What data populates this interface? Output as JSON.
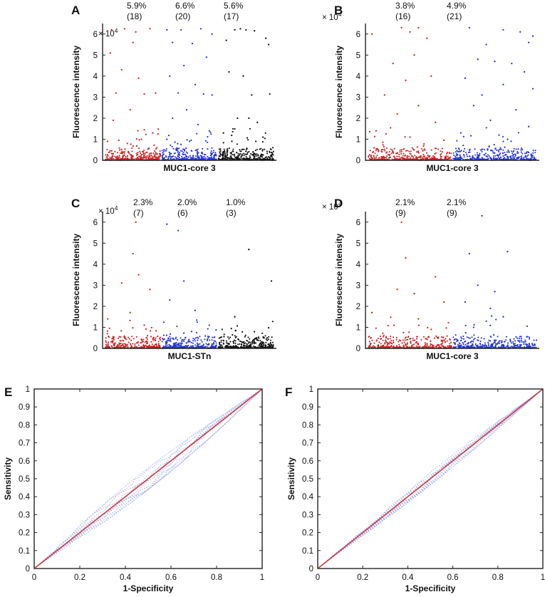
{
  "figure": {
    "colors": {
      "group1": "#cc2222",
      "group2": "#2233dd",
      "group3": "#111111",
      "diagonal": "#d23b3b",
      "roc_curves": "#8f9df0"
    }
  },
  "chart_data": [
    {
      "panel": "A",
      "type": "scatter",
      "xlabel": "MUC1-core 3",
      "ylabel": "Fluorescence intensity",
      "y_multiplier": "× 10",
      "y_multiplier_exp": "4",
      "ylim": [
        0,
        6.5
      ],
      "yticks": [
        "0",
        "1",
        "2",
        "3",
        "4",
        "5",
        "6"
      ],
      "groups": [
        {
          "percent": "5.9%",
          "count": "(18)",
          "color": "#cc2222",
          "n_points": 300,
          "high_points": [
            [
              0.12,
              6.2
            ],
            [
              0.35,
              6.25
            ],
            [
              0.55,
              6.1
            ],
            [
              0.8,
              6.25
            ],
            [
              0.1,
              5.1
            ],
            [
              0.5,
              5.6
            ],
            [
              0.3,
              4.3
            ],
            [
              0.6,
              3.9
            ],
            [
              0.2,
              3.2
            ],
            [
              0.7,
              3.15
            ],
            [
              0.9,
              3.2
            ],
            [
              0.45,
              2.4
            ],
            [
              0.15,
              1.9
            ],
            [
              0.85,
              1.3
            ],
            [
              0.65,
              1.0
            ],
            [
              0.25,
              0.95
            ],
            [
              0.05,
              0.9
            ],
            [
              0.4,
              0.8
            ]
          ]
        },
        {
          "percent": "6.6%",
          "count": "(20)",
          "color": "#2233dd",
          "n_points": 300,
          "high_points": [
            [
              0.1,
              6.2
            ],
            [
              0.35,
              6.2
            ],
            [
              0.7,
              6.25
            ],
            [
              0.9,
              6.0
            ],
            [
              0.2,
              5.6
            ],
            [
              0.55,
              5.55
            ],
            [
              0.8,
              4.9
            ],
            [
              0.4,
              4.5
            ],
            [
              0.15,
              4.0
            ],
            [
              0.6,
              3.6
            ],
            [
              0.3,
              3.2
            ],
            [
              0.75,
              3.15
            ],
            [
              0.9,
              3.1
            ],
            [
              0.45,
              2.4
            ],
            [
              0.2,
              2.0
            ],
            [
              0.65,
              1.7
            ],
            [
              0.85,
              1.4
            ],
            [
              0.1,
              1.0
            ],
            [
              0.5,
              0.9
            ],
            [
              0.35,
              0.75
            ]
          ]
        },
        {
          "percent": "5.6%",
          "count": "(17)",
          "color": "#111111",
          "n_points": 300,
          "high_points": [
            [
              0.3,
              6.2
            ],
            [
              0.4,
              6.25
            ],
            [
              0.5,
              6.2
            ],
            [
              0.65,
              6.15
            ],
            [
              0.85,
              5.8
            ],
            [
              0.9,
              5.5
            ],
            [
              0.15,
              5.7
            ],
            [
              0.2,
              4.2
            ],
            [
              0.45,
              4.0
            ],
            [
              0.6,
              3.1
            ],
            [
              0.92,
              3.15
            ],
            [
              0.35,
              2.0
            ],
            [
              0.55,
              2.0
            ],
            [
              0.7,
              1.8
            ],
            [
              0.1,
              1.3
            ],
            [
              0.8,
              1.1
            ],
            [
              0.25,
              0.9
            ]
          ]
        }
      ]
    },
    {
      "panel": "B",
      "type": "scatter",
      "xlabel": "MUC1-core 3",
      "ylabel": "Fluorescence intensity",
      "y_multiplier": "× 10",
      "y_multiplier_exp": "4",
      "ylim": [
        0,
        6.5
      ],
      "yticks": [
        "0",
        "1",
        "2",
        "3",
        "4",
        "5",
        "6"
      ],
      "groups": [
        {
          "percent": "3.8%",
          "count": "(16)",
          "color": "#cc2222",
          "n_points": 360,
          "high_points": [
            [
              0.4,
              6.3
            ],
            [
              0.6,
              6.3
            ],
            [
              0.5,
              6.1
            ],
            [
              0.7,
              5.8
            ],
            [
              0.05,
              6.0
            ],
            [
              0.55,
              5.0
            ],
            [
              0.3,
              4.6
            ],
            [
              0.75,
              4.0
            ],
            [
              0.45,
              3.8
            ],
            [
              0.2,
              3.1
            ],
            [
              0.6,
              2.6
            ],
            [
              0.35,
              2.2
            ],
            [
              0.8,
              1.8
            ],
            [
              0.1,
              1.4
            ],
            [
              0.5,
              1.1
            ],
            [
              0.9,
              0.95
            ]
          ]
        },
        {
          "percent": "4.9%",
          "count": "(21)",
          "color": "#2233dd",
          "n_points": 360,
          "high_points": [
            [
              0.2,
              6.3
            ],
            [
              0.6,
              6.2
            ],
            [
              0.8,
              6.1
            ],
            [
              0.95,
              5.9
            ],
            [
              0.4,
              5.5
            ],
            [
              0.9,
              5.6
            ],
            [
              0.3,
              4.8
            ],
            [
              0.5,
              4.7
            ],
            [
              0.7,
              4.6
            ],
            [
              0.85,
              4.2
            ],
            [
              0.15,
              3.9
            ],
            [
              0.6,
              3.6
            ],
            [
              0.35,
              3.1
            ],
            [
              0.95,
              3.4
            ],
            [
              0.25,
              2.6
            ],
            [
              0.75,
              2.4
            ],
            [
              0.45,
              1.9
            ],
            [
              0.9,
              1.6
            ],
            [
              0.1,
              1.3
            ],
            [
              0.55,
              1.2
            ],
            [
              0.65,
              1.0
            ]
          ]
        }
      ]
    },
    {
      "panel": "C",
      "type": "scatter",
      "xlabel": "MUC1-STn",
      "ylabel": "Fluorescence intensity",
      "y_multiplier": "× 10",
      "y_multiplier_exp": "4",
      "ylim": [
        0,
        6.5
      ],
      "yticks": [
        "0",
        "1",
        "2",
        "3",
        "4",
        "5",
        "6"
      ],
      "groups": [
        {
          "percent": "2.3%",
          "count": "(7)",
          "color": "#cc2222",
          "n_points": 300,
          "high_points": [
            [
              0.55,
              6.0
            ],
            [
              0.5,
              4.5
            ],
            [
              0.6,
              3.5
            ],
            [
              0.3,
              3.1
            ],
            [
              0.8,
              2.8
            ],
            [
              0.45,
              1.7
            ],
            [
              0.7,
              1.1
            ]
          ]
        },
        {
          "percent": "2.0%",
          "count": "(6)",
          "color": "#2233dd",
          "n_points": 300,
          "high_points": [
            [
              0.1,
              5.9
            ],
            [
              0.3,
              5.6
            ],
            [
              0.4,
              3.2
            ],
            [
              0.15,
              2.3
            ],
            [
              0.6,
              1.8
            ],
            [
              0.85,
              1.1
            ]
          ]
        },
        {
          "percent": "1.0%",
          "count": "(3)",
          "color": "#111111",
          "n_points": 300,
          "high_points": [
            [
              0.55,
              4.7
            ],
            [
              0.95,
              3.2
            ],
            [
              0.3,
              1.5
            ]
          ]
        }
      ]
    },
    {
      "panel": "D",
      "type": "scatter",
      "xlabel": "MUC1-core 3",
      "ylabel": "Fluorescence intensity",
      "y_multiplier": "× 10",
      "y_multiplier_exp": "4",
      "ylim": [
        0,
        6.5
      ],
      "yticks": [
        "0",
        "1",
        "2",
        "3",
        "4",
        "5",
        "6"
      ],
      "groups": [
        {
          "percent": "2.1%",
          "count": "(9)",
          "color": "#cc2222",
          "n_points": 360,
          "high_points": [
            [
              0.4,
              6.0
            ],
            [
              0.45,
              4.3
            ],
            [
              0.8,
              3.4
            ],
            [
              0.55,
              2.6
            ],
            [
              0.35,
              2.8
            ],
            [
              0.9,
              2.2
            ],
            [
              0.05,
              1.7
            ],
            [
              0.6,
              1.4
            ],
            [
              0.75,
              0.9
            ]
          ]
        },
        {
          "percent": "2.1%",
          "count": "(9)",
          "color": "#2233dd",
          "n_points": 360,
          "high_points": [
            [
              0.35,
              6.3
            ],
            [
              0.65,
              4.6
            ],
            [
              0.2,
              4.5
            ],
            [
              0.3,
              3.0
            ],
            [
              0.5,
              2.7
            ],
            [
              0.15,
              2.2
            ],
            [
              0.45,
              1.9
            ],
            [
              0.6,
              1.5
            ],
            [
              0.25,
              1.0
            ]
          ]
        }
      ]
    },
    {
      "panel": "E",
      "type": "line",
      "xlabel": "1-Specificity",
      "ylabel": "Sensitivity",
      "xlim": [
        0,
        1
      ],
      "ylim": [
        0,
        1
      ],
      "xticks": [
        "0",
        "0.2",
        "0.4",
        "0.6",
        "0.8",
        "1"
      ],
      "yticks": [
        "0",
        "0.1",
        "0.2",
        "0.3",
        "0.4",
        "0.5",
        "0.6",
        "0.7",
        "0.8",
        "0.9",
        "1"
      ],
      "diagonal": {
        "x": [
          0,
          1
        ],
        "y": [
          0,
          1
        ],
        "color": "#d23b3b"
      },
      "n_curves": 12,
      "curve_spread": 0.06
    },
    {
      "panel": "F",
      "type": "line",
      "xlabel": "1-Specificity",
      "ylabel": "Sensitivity",
      "xlim": [
        0,
        1
      ],
      "ylim": [
        0,
        1
      ],
      "xticks": [
        "0",
        "0.2",
        "0.4",
        "0.6",
        "0.8",
        "1"
      ],
      "yticks": [
        "0",
        "0.1",
        "0.2",
        "0.3",
        "0.4",
        "0.5",
        "0.6",
        "0.7",
        "0.8",
        "0.9",
        "1"
      ],
      "diagonal": {
        "x": [
          0,
          1
        ],
        "y": [
          0,
          1
        ],
        "color": "#d23b3b"
      },
      "n_curves": 12,
      "curve_spread": 0.035
    }
  ]
}
